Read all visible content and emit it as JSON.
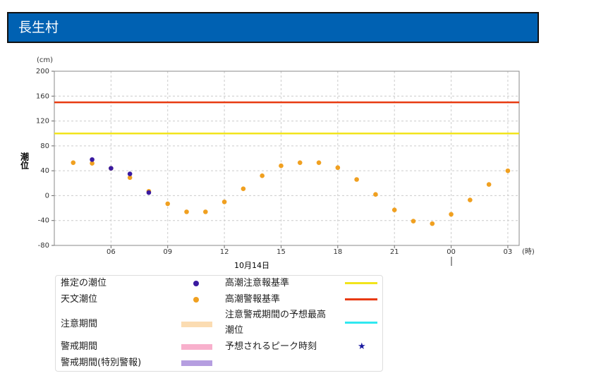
{
  "chart_data": {
    "type": "scatter",
    "title": "長生村",
    "y_unit": "(cm)",
    "y_label": "潮位",
    "x_unit": "(時)",
    "x_label": "10月14日",
    "xlim": [
      3,
      27.6
    ],
    "xticks": [
      {
        "value": 6,
        "label": "06"
      },
      {
        "value": 9,
        "label": "09"
      },
      12,
      15,
      18,
      21,
      {
        "value": 24,
        "label": "00"
      },
      {
        "value": 27,
        "label": "03"
      }
    ],
    "ylim": [
      -80,
      200
    ],
    "yticks": [
      -80,
      -40,
      0,
      40,
      80,
      120,
      160,
      200
    ],
    "grid": true,
    "series": [
      {
        "name": "推定の潮位",
        "color": "#3a1aa0",
        "x": [
          5,
          6,
          7,
          8
        ],
        "values": [
          58,
          44,
          35,
          5
        ]
      },
      {
        "name": "天文潮位",
        "color": "#f0a020",
        "x": [
          4,
          5,
          6,
          7,
          8,
          9,
          10,
          11,
          12,
          13,
          14,
          15,
          16,
          17,
          18,
          19,
          20,
          21,
          22,
          23,
          24,
          25,
          26,
          27
        ],
        "values": [
          53,
          52,
          44,
          29,
          7,
          -13,
          -26,
          -26,
          -10,
          11,
          32,
          48,
          53,
          53,
          45,
          26,
          2,
          -23,
          -41,
          -45,
          -30,
          -7,
          18,
          40
        ]
      }
    ],
    "thresholds": [
      {
        "name": "高潮注意報基準",
        "value": 100,
        "color": "#f2e41c"
      },
      {
        "name": "高潮警報基準",
        "value": 150,
        "color": "#e83a10"
      }
    ],
    "legend_extras": [
      {
        "name": "注意期間",
        "color": "#fbdcb2",
        "kind": "band"
      },
      {
        "name": "警戒期間",
        "color": "#f8b0cc",
        "kind": "band"
      },
      {
        "name": "警戒期間(特別警報)",
        "color": "#b59ee0",
        "kind": "band"
      },
      {
        "name": "注意警戒期間の予想最高潮位",
        "color": "#30e8f0",
        "kind": "line"
      },
      {
        "name": "予想されるピーク時刻",
        "color": "#1a1aa0",
        "kind": "star"
      }
    ]
  }
}
